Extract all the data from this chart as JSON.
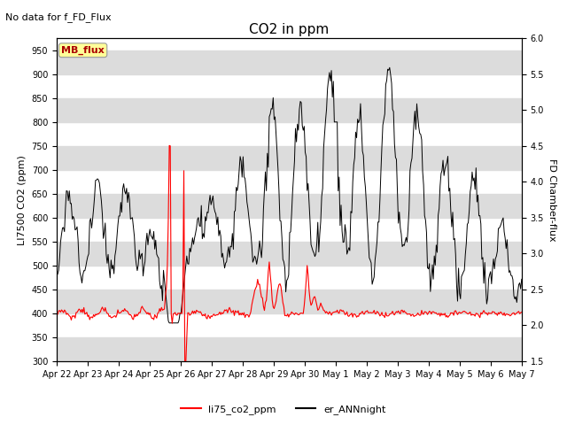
{
  "title": "CO2 in ppm",
  "suptitle": "No data for f_FD_Flux",
  "ylabel_left": "LI7500 CO2 (ppm)",
  "ylabel_right": "FD Chamber-flux",
  "ylim_left": [
    300,
    975
  ],
  "ylim_right": [
    1.5,
    6.0
  ],
  "yticks_left": [
    300,
    350,
    400,
    450,
    500,
    550,
    600,
    650,
    700,
    750,
    800,
    850,
    900,
    950
  ],
  "yticks_right": [
    1.5,
    2.0,
    2.5,
    3.0,
    3.5,
    4.0,
    4.5,
    5.0,
    5.5,
    6.0
  ],
  "color_red": "#FF0000",
  "color_black": "#000000",
  "color_bg_band": "#DCDCDC",
  "legend_label_red": "li75_co2_ppm",
  "legend_label_black": "er_ANNnight",
  "mb_flux_label": "MB_flux",
  "mb_flux_color": "#AA0000",
  "mb_flux_bg": "#FFFF99",
  "n_points": 480
}
